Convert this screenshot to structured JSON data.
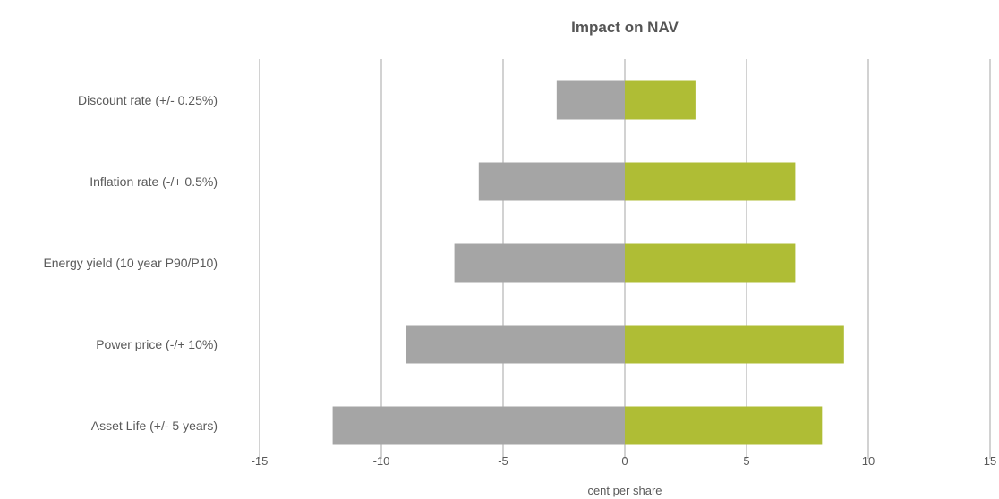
{
  "chart_data": {
    "type": "bar",
    "orientation": "horizontal",
    "stacked": true,
    "title": "Impact on NAV",
    "xlabel": "cent per share",
    "ylabel": "",
    "xlim": [
      -15,
      15
    ],
    "xticks": [
      -15,
      -10,
      -5,
      0,
      5,
      10,
      15
    ],
    "grid": true,
    "legend": "none",
    "categories": [
      "Discount rate (+/- 0.25%)",
      "Inflation rate (-/+ 0.5%)",
      "Energy yield (10 year P90/P10)",
      "Power price (-/+ 10%)",
      "Asset Life (+/- 5 years)"
    ],
    "series": [
      {
        "values": [
          -2.8,
          -6.0,
          -7.0,
          -9.0,
          -12.0
        ],
        "color": "#a5a5a5"
      },
      {
        "values": [
          2.9,
          7.0,
          7.0,
          9.0,
          8.1
        ],
        "color": "#afbd35"
      }
    ]
  }
}
